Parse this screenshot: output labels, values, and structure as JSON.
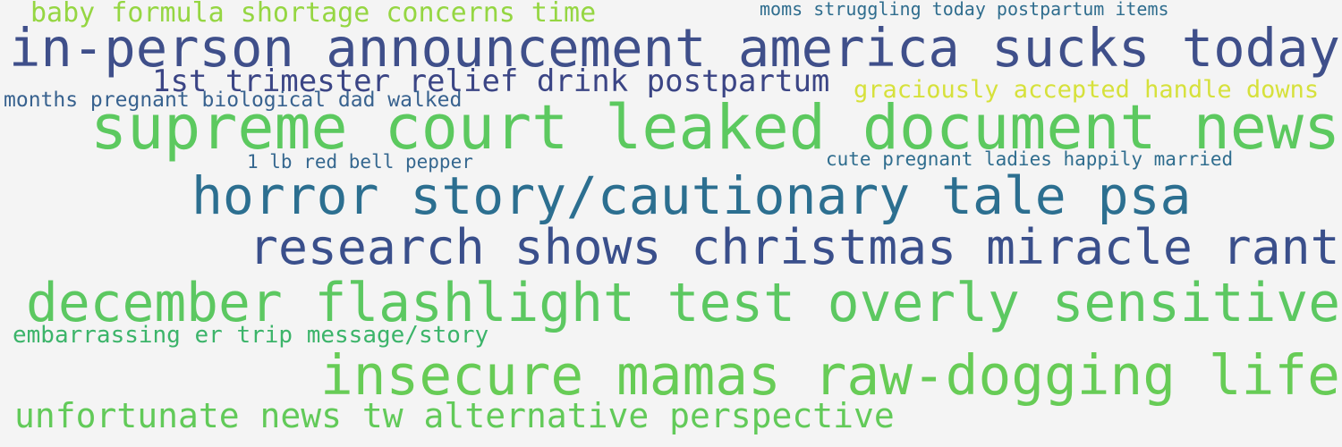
{
  "wordcloud": {
    "words": [
      {
        "text": "baby formula shortage concerns time",
        "color": "#95d642"
      },
      {
        "text": "moms struggling today postpartum items",
        "color": "#2f6d8e"
      },
      {
        "text": "in-person announcement america sucks today",
        "color": "#3f4f8a"
      },
      {
        "text": "1st trimester relief drink postpartum",
        "color": "#3b4585"
      },
      {
        "text": "graciously accepted handle downs",
        "color": "#d6e13b"
      },
      {
        "text": "months pregnant biological dad walked",
        "color": "#38628f"
      },
      {
        "text": "supreme court leaked document news",
        "color": "#5cc95f"
      },
      {
        "text": "1 lb red bell pepper",
        "color": "#35678f"
      },
      {
        "text": "cute pregnant ladies happily married",
        "color": "#2f6d8e"
      },
      {
        "text": "horror story/cautionary tale psa",
        "color": "#2c6f90"
      },
      {
        "text": "research shows christmas miracle rant",
        "color": "#3a4f8b"
      },
      {
        "text": "december flashlight test overly sensitive",
        "color": "#5cc861"
      },
      {
        "text": "embarrassing er trip message/story",
        "color": "#3cb46a"
      },
      {
        "text": "insecure mamas raw-dogging life",
        "color": "#67cc56"
      },
      {
        "text": "unfortunate news tw alternative perspective",
        "color": "#62ca59"
      }
    ]
  }
}
